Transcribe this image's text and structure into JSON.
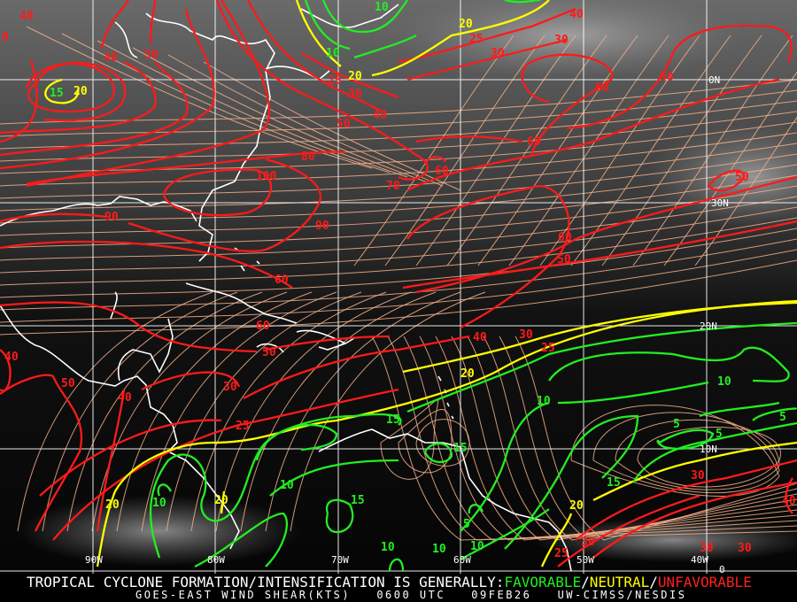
{
  "banner": {
    "headline": "TROPICAL CYCLONE FORMATION/INTENSIFICATION IS GENERALLY:",
    "favorable": "FAVORABLE",
    "sep1": "/",
    "neutral": "NEUTRAL",
    "sep2": "/",
    "unfavorable": "UNFAVORABLE",
    "product": "GOES-EAST WIND SHEAR(KTS)",
    "time": "0600 UTC",
    "date": "09FEB26",
    "source": "UW-CIMSS/NESDIS"
  },
  "colors": {
    "favorable": "#22ee22",
    "neutral": "#ffff00",
    "unfavorable": "#ff1a1a",
    "streamlines": "#f5b08a",
    "coastline": "#ffffff",
    "grid": "#ffffff"
  },
  "map": {
    "latitude_labels": [
      "0N",
      "30N",
      "20N",
      "10N",
      "0"
    ],
    "longitude_labels": [
      "90W",
      "80W",
      "70W",
      "60W",
      "50W",
      "40W"
    ],
    "contour_labels": [
      "40",
      "0",
      "40",
      "50",
      "25",
      "30",
      "40",
      "50",
      "80",
      "100",
      "70",
      "90",
      "90",
      "60",
      "40",
      "25",
      "30",
      "30",
      "60",
      "50",
      "60",
      "60",
      "50",
      "60",
      "50",
      "40",
      "60",
      "50",
      "50",
      "40",
      "30",
      "25",
      "40",
      "30",
      "25",
      "30",
      "25",
      "30",
      "30",
      "30",
      "40",
      "20",
      "20",
      "20",
      "20",
      "20",
      "20",
      "20",
      "15",
      "10",
      "10",
      "15",
      "15",
      "10",
      "15",
      "10",
      "10",
      "10",
      "5",
      "5",
      "5",
      "15",
      "5",
      "10",
      "10",
      "10"
    ],
    "contour_categories": [
      "u",
      "u",
      "u",
      "u",
      "u",
      "u",
      "u",
      "u",
      "u",
      "u",
      "u",
      "u",
      "u",
      "u",
      "u",
      "u",
      "u",
      "u",
      "u",
      "u",
      "u",
      "u",
      "u",
      "u",
      "u",
      "u",
      "u",
      "u",
      "u",
      "u",
      "u",
      "u",
      "u",
      "u",
      "u",
      "u",
      "u",
      "u",
      "u",
      "u",
      "u",
      "n",
      "n",
      "n",
      "n",
      "n",
      "n",
      "n",
      "f",
      "f",
      "f",
      "f",
      "f",
      "f",
      "f",
      "f",
      "f",
      "f",
      "f",
      "f",
      "f",
      "f",
      "f",
      "f",
      "f",
      "f"
    ]
  }
}
